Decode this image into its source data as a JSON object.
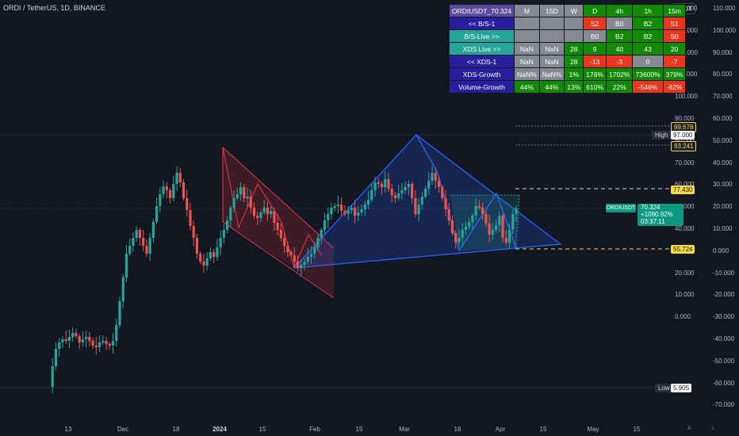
{
  "header": {
    "title": "ORDI / TetherUS, 1D, BINANCE",
    "currency": "USDT"
  },
  "left_axis": [
    "110.000",
    "100.000",
    "130.000",
    "90.000",
    "120.000",
    "80.000",
    "110.000",
    "70.000",
    "100.000",
    "60.000",
    "90.000",
    "50.000",
    "80.000",
    "40.000",
    "70.000",
    "30.000",
    "60.000",
    "20.000",
    "50.000",
    "10.000",
    "40.000",
    "0.000",
    "30.000",
    "-10.000",
    "20.000",
    "-20.000",
    "10.000",
    "-30.000",
    "0.000",
    "-40.000"
  ],
  "right_axis": [
    "110.000",
    "100.000",
    "90.000",
    "80.000",
    "70.000",
    "60.000",
    "50.000",
    "40.000",
    "30.000",
    "20.000",
    "10.000",
    "0.000",
    "-10.000",
    "-20.000",
    "-30.000",
    "-40.000",
    "-50.000",
    "-60.000",
    "-70.000"
  ],
  "x_axis": [
    {
      "label": "13"
    },
    {
      "label": "Dec"
    },
    {
      "label": "18"
    },
    {
      "label": "2024",
      "bold": true
    },
    {
      "label": "15"
    },
    {
      "label": "Feb"
    },
    {
      "label": "15"
    },
    {
      "label": "Mar"
    },
    {
      "label": "18"
    },
    {
      "label": "Apr"
    },
    {
      "label": "15"
    },
    {
      "label": "May"
    },
    {
      "label": "15"
    }
  ],
  "price_tags": {
    "p1": "99.678",
    "high_label": "High",
    "high_value": "97.000",
    "p2": "93.241",
    "p3": "77.430",
    "p4": "55.724",
    "low_label": "Low",
    "low_value": "5.905"
  },
  "current": {
    "symbol": "ORDIUSDT",
    "price": "70.324",
    "change": "+1090.92%",
    "countdown": "03:37:11"
  },
  "table": {
    "header": [
      "ORDIUSDT_70.324",
      "M",
      "15D",
      "W",
      "D",
      "4h",
      "1h",
      "15m"
    ],
    "rows": [
      {
        "label": "<< B/S-1",
        "cells": [
          "",
          "",
          "",
          "S2",
          "B0",
          "B2",
          "S1"
        ]
      },
      {
        "label": "B/S-Live >>",
        "cells": [
          "",
          "",
          "",
          "B0",
          "B2",
          "B2",
          "S0"
        ]
      },
      {
        "label": "XDS Live >>",
        "cells": [
          "NaN",
          "NaN",
          "28",
          "9",
          "40",
          "43",
          "20"
        ]
      },
      {
        "label": "<< XDS-1",
        "cells": [
          "NaN",
          "NaN",
          "28",
          "-13",
          "-3",
          "0",
          "-7"
        ]
      },
      {
        "label": "XDS-Growth",
        "cells": [
          "NaN%",
          "NaN%",
          "1%",
          "176%",
          "1702%",
          "73600%",
          "379%"
        ]
      },
      {
        "label": "Volume-Growth",
        "cells": [
          "44%",
          "44%",
          "13%",
          "610%",
          "22%",
          "-546%",
          "-62%"
        ]
      }
    ],
    "colors": {
      "green": "#138a07",
      "red": "#e8371f",
      "grey": "#868993",
      "navy": "#271f9e",
      "teal": "#26a69a",
      "purple": "#5b4a9e",
      "white": "#ffffff"
    }
  },
  "colors": {
    "up": "#26a69a",
    "down": "#ef5350",
    "bg": "#131722",
    "pattern_red": "#f23645",
    "pattern_blue": "#2962ff"
  }
}
